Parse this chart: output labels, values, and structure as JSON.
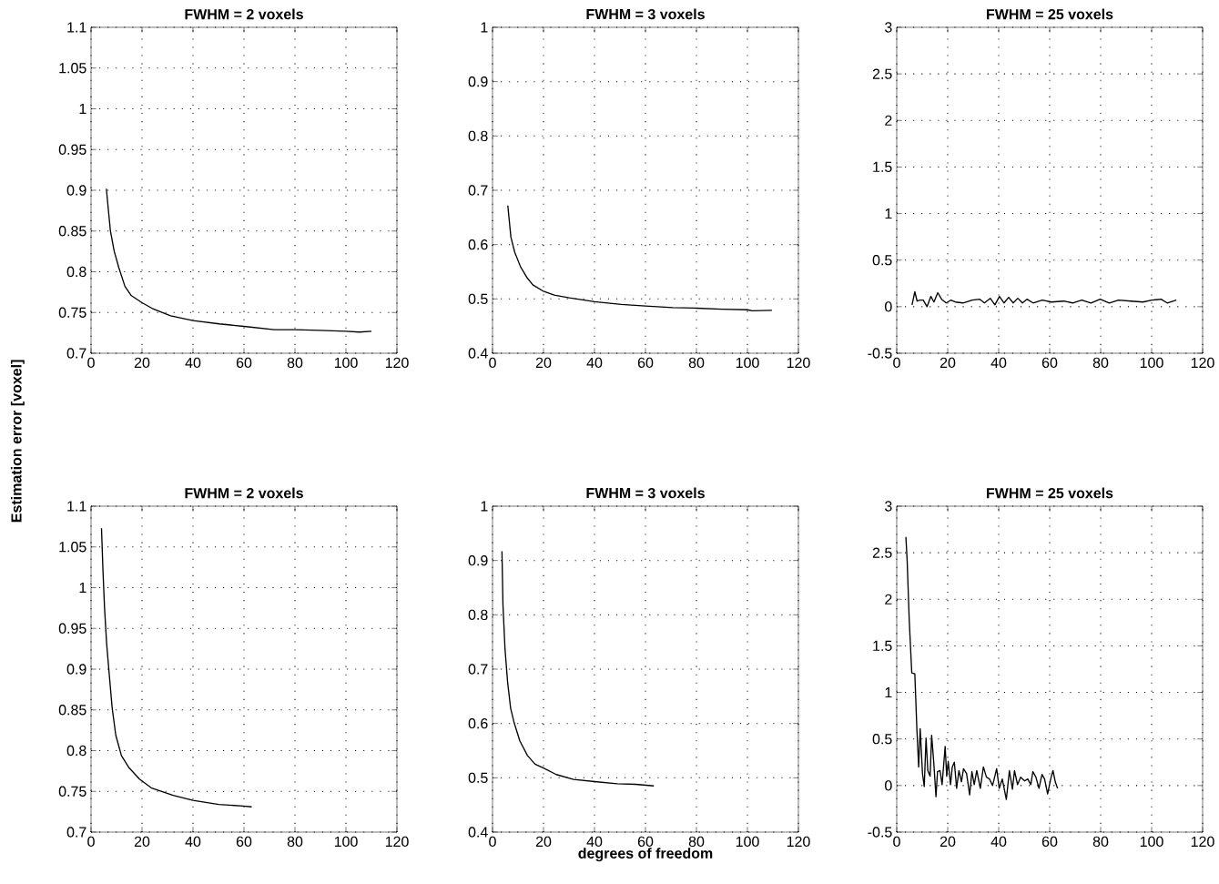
{
  "chart_data": [
    {
      "type": "line",
      "title": "FWHM = 2 voxels",
      "xlim": [
        0,
        120
      ],
      "xticks": [
        0,
        20,
        40,
        60,
        80,
        100,
        120
      ],
      "ylim": [
        0.7,
        1.1
      ],
      "yticks": [
        0.7,
        0.75,
        0.8,
        0.85,
        0.9,
        0.95,
        1,
        1.05,
        1.1
      ],
      "grid": true,
      "line_style": "solid",
      "series": [
        {
          "color": "#000000",
          "x": [
            6,
            7.6,
            9.1,
            10.9,
            13.3,
            15.7,
            20,
            24,
            31.2,
            40,
            50.3,
            60,
            71.9,
            80,
            89.8,
            100,
            105.3,
            110
          ],
          "values": [
            0.902,
            0.85,
            0.825,
            0.805,
            0.782,
            0.771,
            0.762,
            0.755,
            0.746,
            0.74,
            0.736,
            0.733,
            0.729,
            0.729,
            0.728,
            0.727,
            0.726,
            0.727
          ]
        }
      ]
    },
    {
      "type": "line",
      "title": "FWHM = 3 voxels",
      "xlim": [
        0,
        120
      ],
      "xticks": [
        0,
        20,
        40,
        60,
        80,
        100,
        120
      ],
      "ylim": [
        0.4,
        1
      ],
      "yticks": [
        0.4,
        0.5,
        0.6,
        0.7,
        0.8,
        0.9,
        1
      ],
      "grid": true,
      "line_style": "solid",
      "series": [
        {
          "color": "#000000",
          "x": [
            6,
            7.2,
            8.7,
            11,
            13.4,
            15.8,
            20,
            24.2,
            30.1,
            40,
            50.5,
            60,
            70.7,
            80,
            89.9,
            100,
            101.8,
            109.6
          ],
          "values": [
            0.672,
            0.614,
            0.586,
            0.559,
            0.54,
            0.526,
            0.514,
            0.507,
            0.502,
            0.495,
            0.49,
            0.487,
            0.484,
            0.483,
            0.481,
            0.48,
            0.478,
            0.479
          ]
        }
      ]
    },
    {
      "type": "line",
      "title": "FWHM = 25 voxels",
      "xlim": [
        0,
        120
      ],
      "xticks": [
        0,
        20,
        40,
        60,
        80,
        100,
        120
      ],
      "ylim": [
        -0.5,
        3
      ],
      "yticks": [
        -0.5,
        0,
        0.5,
        1,
        1.5,
        2,
        2.5,
        3
      ],
      "grid": true,
      "line_style": "solid",
      "series": [
        {
          "color": "#000000",
          "x": [
            6,
            7.1,
            8,
            9.2,
            10.4,
            11.9,
            13.4,
            14.6,
            16.1,
            17.6,
            19.4,
            21.2,
            23,
            26,
            29.6,
            32.6,
            34.4,
            36.7,
            38.5,
            40.3,
            42.1,
            43.9,
            45.7,
            47.5,
            49.3,
            51.1,
            53.5,
            57.1,
            60.7,
            65.5,
            69,
            72.6,
            76.2,
            79.8,
            83.4,
            87,
            91.8,
            96.6,
            100.1,
            103.7,
            106.1,
            109.7
          ],
          "values": [
            0.02,
            0.16,
            0.06,
            0.07,
            0.07,
            0,
            0.11,
            0.05,
            0.15,
            0.08,
            0.04,
            0.07,
            0.05,
            0.04,
            0.07,
            0.08,
            0.04,
            0.09,
            0.02,
            0.11,
            0.04,
            0.1,
            0.04,
            0.09,
            0.04,
            0.08,
            0.04,
            0.07,
            0.05,
            0.06,
            0.04,
            0.07,
            0.04,
            0.08,
            0.04,
            0.07,
            0.06,
            0.05,
            0.07,
            0.08,
            0.04,
            0.07
          ]
        }
      ]
    },
    {
      "type": "line",
      "title": "FWHM = 2 voxels",
      "ylabel": "Estimation error [voxel]",
      "xlim": [
        0,
        120
      ],
      "xticks": [
        0,
        20,
        40,
        60,
        80,
        100,
        120
      ],
      "ylim": [
        0.7,
        1.1
      ],
      "yticks": [
        0.7,
        0.75,
        0.8,
        0.85,
        0.9,
        0.95,
        1,
        1.05,
        1.1
      ],
      "grid": true,
      "line_style": "solid",
      "series": [
        {
          "color": "#000000",
          "x": [
            4.1,
            4.7,
            5.3,
            6.1,
            7.1,
            8.3,
            9.7,
            11.9,
            14.9,
            19,
            23.8,
            32.2,
            40,
            50.1,
            59.7,
            63
          ],
          "values": [
            1.073,
            1.019,
            0.975,
            0.932,
            0.895,
            0.852,
            0.819,
            0.794,
            0.779,
            0.765,
            0.754,
            0.745,
            0.739,
            0.734,
            0.732,
            0.731
          ]
        }
      ]
    },
    {
      "type": "line",
      "title": "FWHM = 3 voxels",
      "xlabel": "degrees of freedom",
      "xlim": [
        0,
        120
      ],
      "xticks": [
        0,
        20,
        40,
        60,
        80,
        100,
        120
      ],
      "ylim": [
        0.4,
        1
      ],
      "yticks": [
        0.4,
        0.5,
        0.6,
        0.7,
        0.8,
        0.9,
        1
      ],
      "grid": true,
      "line_style": "solid",
      "series": [
        {
          "color": "#000000",
          "x": [
            3.7,
            4.1,
            4.9,
            5.9,
            7.1,
            8.5,
            10.7,
            13.7,
            16.7,
            20,
            25,
            31.8,
            40,
            48.9,
            56.1,
            63.3
          ],
          "values": [
            0.917,
            0.818,
            0.737,
            0.677,
            0.628,
            0.601,
            0.568,
            0.541,
            0.525,
            0.518,
            0.506,
            0.497,
            0.493,
            0.489,
            0.488,
            0.485
          ]
        }
      ]
    },
    {
      "type": "line",
      "title": "FWHM = 25 voxels",
      "xlim": [
        0,
        120
      ],
      "xticks": [
        0,
        20,
        40,
        60,
        80,
        100,
        120
      ],
      "ylim": [
        -0.5,
        3
      ],
      "yticks": [
        -0.5,
        0,
        0.5,
        1,
        1.5,
        2,
        2.5,
        3
      ],
      "grid": true,
      "line_style": "solid",
      "series": [
        {
          "color": "#000000",
          "x": [
            3.6,
            4.1,
            4.9,
            5.9,
            7.1,
            7.9,
            8.6,
            9.2,
            10.1,
            10.8,
            11.5,
            12.2,
            13.1,
            13.7,
            14.5,
            15.4,
            16,
            17,
            17.8,
            19,
            19.6,
            20.2,
            21.1,
            21.8,
            22.6,
            23.5,
            24.4,
            25.4,
            26.2,
            27.4,
            28.6,
            29.5,
            30.4,
            31.4,
            32.8,
            34,
            35.2,
            36.4,
            37.6,
            39.2,
            40.2,
            41.4,
            43,
            44.2,
            45.4,
            46.2,
            47.4,
            48.6,
            50.2,
            51.4,
            52.6,
            53.4,
            54.6,
            55.8,
            57,
            58,
            59.2,
            60.4,
            61.3,
            62.2,
            63.1
          ],
          "values": [
            2.67,
            2.41,
            1.78,
            1.21,
            1.2,
            0.61,
            0.2,
            0.61,
            0.13,
            -0.01,
            0.51,
            0.16,
            0.1,
            0.54,
            0.26,
            -0.12,
            0.15,
            0.16,
            0.01,
            0.42,
            0.1,
            0.26,
            0.01,
            0.2,
            0.25,
            -0.03,
            0.16,
            0.04,
            0.18,
            0.13,
            -0.1,
            0.15,
            0.01,
            0.16,
            -0.03,
            0.2,
            0.09,
            0.07,
            0,
            0.18,
            -0.03,
            0.07,
            -0.15,
            0.16,
            -0.04,
            0.16,
            0.01,
            0.09,
            0.05,
            0.07,
            0.01,
            0.15,
            0.09,
            -0.03,
            0.12,
            0.07,
            -0.09,
            0.07,
            0.16,
            0.04,
            -0.03
          ]
        }
      ]
    }
  ]
}
